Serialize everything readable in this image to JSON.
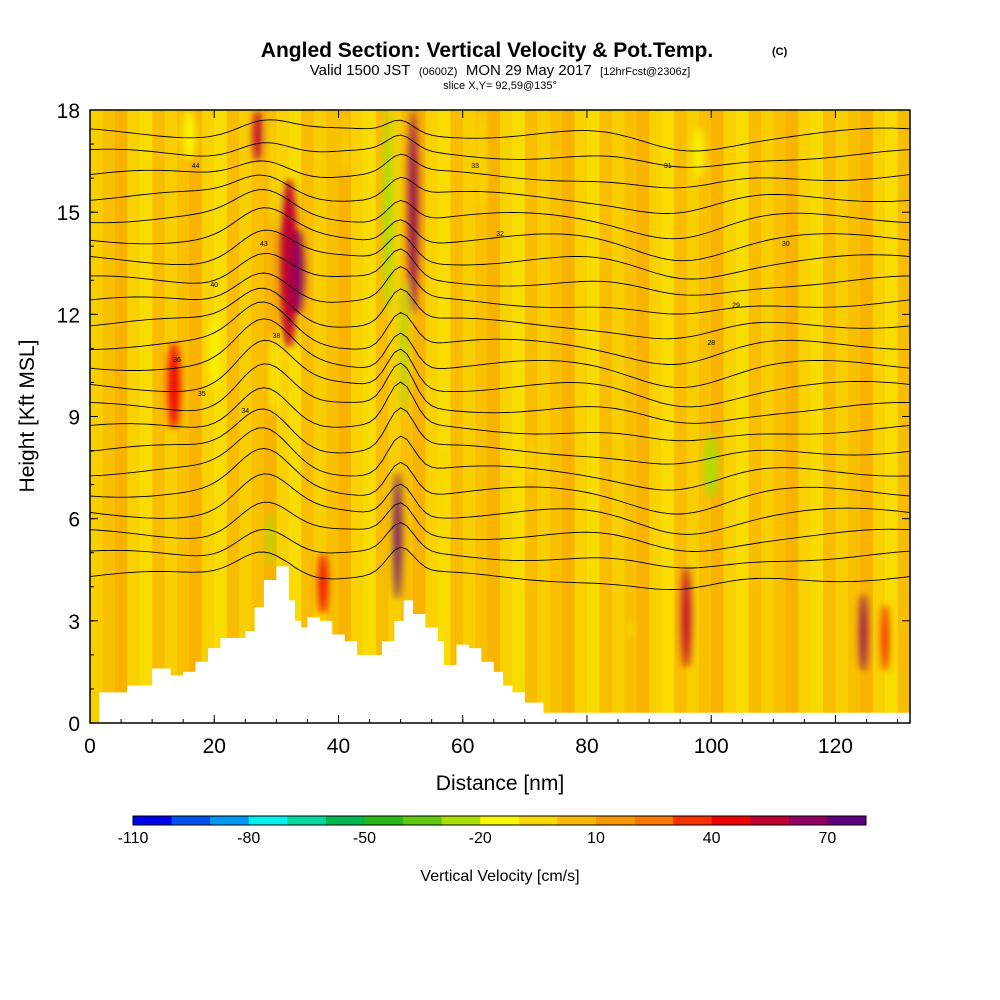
{
  "chart_data": {
    "type": "heatmap",
    "title": "Angled Section: Vertical Velocity & Pot.Temp.",
    "title_suffix": "(C)",
    "subtitle": {
      "prefix": "Valid 1500 JST",
      "utc": "(0600Z)",
      "date": "MON 29 May 2017",
      "forecast": "[12hrFcst@2306z]"
    },
    "slice_label": "slice X,Y= 92,59@135°",
    "xlabel": "Distance [nm]",
    "ylabel": "Height [Kft MSL]",
    "xlim": [
      0,
      132
    ],
    "ylim": [
      0,
      18
    ],
    "xticks": [
      "0",
      "20",
      "40",
      "60",
      "80",
      "100",
      "120"
    ],
    "yticks": [
      "0",
      "3",
      "6",
      "9",
      "12",
      "15",
      "18"
    ],
    "colorbar": {
      "title": "Vertical Velocity [cm/s]",
      "tick_labels": [
        "-110",
        "-80",
        "-50",
        "-20",
        "10",
        "40",
        "70"
      ],
      "colors": [
        "#0000f0",
        "#0050f0",
        "#0098f0",
        "#00f0f0",
        "#00d8a0",
        "#00b850",
        "#28b818",
        "#60c810",
        "#a8e000",
        "#f8f800",
        "#f8d800",
        "#f8b800",
        "#f89800",
        "#f87800",
        "#f83000",
        "#f00000",
        "#c00030",
        "#900060",
        "#600080"
      ]
    },
    "terrain_profile": {
      "x": [
        0,
        1.5,
        6,
        10,
        13,
        15,
        17,
        19,
        21,
        23,
        25,
        26.5,
        28,
        30,
        32,
        33,
        34,
        35,
        37,
        39,
        41,
        43,
        45,
        47,
        49,
        50.5,
        52,
        54,
        56,
        57,
        59,
        61,
        63,
        65,
        66.5,
        68,
        70,
        73,
        132
      ],
      "height_kft": [
        0,
        0.9,
        1.1,
        1.6,
        1.4,
        1.5,
        1.8,
        2.2,
        2.5,
        2.5,
        2.7,
        3.4,
        4.2,
        4.6,
        3.6,
        3.0,
        2.8,
        3.1,
        3.0,
        2.6,
        2.4,
        2.0,
        2.0,
        2.4,
        3.0,
        3.6,
        3.2,
        2.8,
        2.4,
        1.7,
        2.3,
        2.2,
        1.8,
        1.5,
        1.1,
        0.9,
        0.6,
        0.3,
        0.3
      ]
    },
    "vertical_velocity_features": [
      {
        "x": 13.5,
        "y0": 8.6,
        "y1": 11.2,
        "w": 2.0,
        "value": 30
      },
      {
        "x": 16.0,
        "y0": 16.5,
        "y1": 18,
        "w": 2.0,
        "value": -30
      },
      {
        "x": 20.0,
        "y0": 9.8,
        "y1": 12.0,
        "w": 1.5,
        "value": -30
      },
      {
        "x": 27.0,
        "y0": 16.5,
        "y1": 18,
        "w": 1.5,
        "value": 45
      },
      {
        "x": 29.5,
        "y0": 14.5,
        "y1": 18,
        "w": 1.5,
        "value": -20
      },
      {
        "x": 32.0,
        "y0": 11.0,
        "y1": 16.0,
        "w": 3.0,
        "value": 40
      },
      {
        "x": 33.5,
        "y0": 12.0,
        "y1": 14.5,
        "w": 2.0,
        "value": 50
      },
      {
        "x": 29.5,
        "y0": 9.0,
        "y1": 11.5,
        "w": 1.2,
        "value": -30
      },
      {
        "x": 29.0,
        "y0": 4.6,
        "y1": 6.2,
        "w": 1.0,
        "value": -40
      },
      {
        "x": 37.5,
        "y0": 3.2,
        "y1": 5.0,
        "w": 1.5,
        "value": 35
      },
      {
        "x": 41.0,
        "y0": 16.0,
        "y1": 18,
        "w": 1.2,
        "value": -20
      },
      {
        "x": 48.0,
        "y0": 12.0,
        "y1": 18,
        "w": 1.5,
        "value": -40
      },
      {
        "x": 50.5,
        "y0": 9.0,
        "y1": 13.0,
        "w": 1.0,
        "value": -40
      },
      {
        "x": 52.0,
        "y0": 12.0,
        "y1": 18,
        "w": 1.5,
        "value": 50
      },
      {
        "x": 49.5,
        "y0": 3.6,
        "y1": 7.4,
        "w": 1.2,
        "value": 70
      },
      {
        "x": 37.0,
        "y0": 6.0,
        "y1": 8.5,
        "w": 1.0,
        "value": -20
      },
      {
        "x": 63.0,
        "y0": 15.0,
        "y1": 18,
        "w": 1.5,
        "value": -20
      },
      {
        "x": 71.0,
        "y0": 7.0,
        "y1": 8.5,
        "w": 1.0,
        "value": -20
      },
      {
        "x": 100.0,
        "y0": 6.6,
        "y1": 8.5,
        "w": 2.0,
        "value": -40
      },
      {
        "x": 98.0,
        "y0": 16.0,
        "y1": 17.5,
        "w": 1.5,
        "value": -30
      },
      {
        "x": 96.0,
        "y0": 1.6,
        "y1": 4.6,
        "w": 1.5,
        "value": 40
      },
      {
        "x": 124.5,
        "y0": 1.5,
        "y1": 3.8,
        "w": 1.2,
        "value": 50
      },
      {
        "x": 128.0,
        "y0": 1.5,
        "y1": 3.5,
        "w": 1.0,
        "value": 35
      },
      {
        "x": 87.0,
        "y0": 2.5,
        "y1": 3.0,
        "w": 1.0,
        "value": -20
      },
      {
        "x": 56.5,
        "y0": 5.5,
        "y1": 8.0,
        "w": 2.0,
        "value": -20
      }
    ],
    "isentrope_labels": [
      "44",
      "43",
      "40",
      "38",
      "36",
      "35",
      "34",
      "33",
      "32",
      "31",
      "30",
      "29",
      "28"
    ]
  }
}
